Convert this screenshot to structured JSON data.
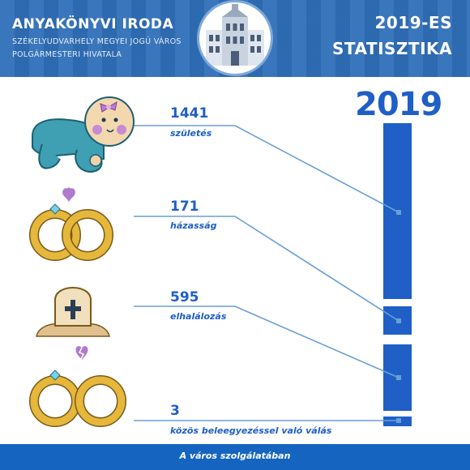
{
  "header": {
    "title": "ANYAKÖNYVI IRODA",
    "subtitle_line1": "SZÉKELYUDVARHELY MEGYEI JOGÚ VÁROS",
    "subtitle_line2": "POLGÁRMESTERI HIVATALA",
    "right_title_line1": "2019-ES",
    "right_title_line2": "STATISZTIKA"
  },
  "year_label": "2019",
  "stats": [
    {
      "value": "1441",
      "label": "születés",
      "icon": "baby-icon"
    },
    {
      "value": "171",
      "label": "házasság",
      "icon": "wedding-rings-icon"
    },
    {
      "value": "595",
      "label": "elhalálozás",
      "icon": "gravestone-icon"
    },
    {
      "value": "3",
      "label": "közös beleegyezéssel való válás",
      "icon": "divorce-rings-icon"
    }
  ],
  "footer": "A város szolgálatában",
  "colors": {
    "primary": "#1f5fc6",
    "header": "#2f6fb8",
    "footer": "#1565c0",
    "line": "#6a9fd4",
    "ring": "#e5b73b",
    "heart": "#b07ad0"
  }
}
